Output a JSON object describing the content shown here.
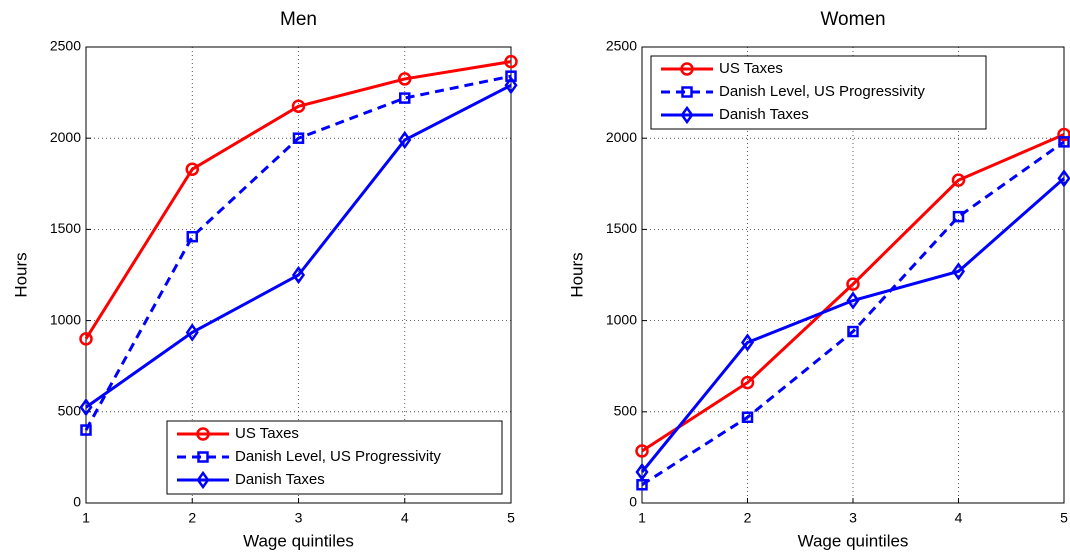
{
  "chart_data": [
    {
      "type": "line",
      "title": "Men",
      "xlabel": "Wage quintiles",
      "ylabel": "Hours",
      "x": [
        1,
        2,
        3,
        4,
        5
      ],
      "xlim": [
        1,
        5
      ],
      "xticks": [
        1,
        2,
        3,
        4,
        5
      ],
      "ylim": [
        0,
        2500
      ],
      "yticks": [
        0,
        500,
        1000,
        1500,
        2000,
        2500
      ],
      "grid": true,
      "legend": "lower right",
      "series": [
        {
          "name": "US Taxes",
          "color": "#ff0000",
          "marker": "circle",
          "dashed": false,
          "values": [
            900,
            1830,
            2175,
            2325,
            2420
          ]
        },
        {
          "name": "Danish Level, US Progressivity",
          "color": "#0000ff",
          "marker": "square",
          "dashed": true,
          "values": [
            400,
            1460,
            2000,
            2220,
            2340
          ]
        },
        {
          "name": "Danish Taxes",
          "color": "#0000ff",
          "marker": "diamond",
          "dashed": false,
          "values": [
            525,
            935,
            1250,
            1990,
            2290
          ]
        }
      ]
    },
    {
      "type": "line",
      "title": "Women",
      "xlabel": "Wage quintiles",
      "ylabel": "Hours",
      "x": [
        1,
        2,
        3,
        4,
        5
      ],
      "xlim": [
        1,
        5
      ],
      "xticks": [
        1,
        2,
        3,
        4,
        5
      ],
      "ylim": [
        0,
        2500
      ],
      "yticks": [
        0,
        500,
        1000,
        1500,
        2000,
        2500
      ],
      "grid": true,
      "legend": "upper left",
      "series": [
        {
          "name": "US Taxes",
          "color": "#ff0000",
          "marker": "circle",
          "dashed": false,
          "values": [
            285,
            660,
            1200,
            1770,
            2020
          ]
        },
        {
          "name": "Danish Level, US Progressivity",
          "color": "#0000ff",
          "marker": "square",
          "dashed": true,
          "values": [
            100,
            470,
            940,
            1570,
            1980
          ]
        },
        {
          "name": "Danish Taxes",
          "color": "#0000ff",
          "marker": "diamond",
          "dashed": false,
          "values": [
            170,
            880,
            1110,
            1270,
            1780
          ]
        }
      ]
    }
  ]
}
